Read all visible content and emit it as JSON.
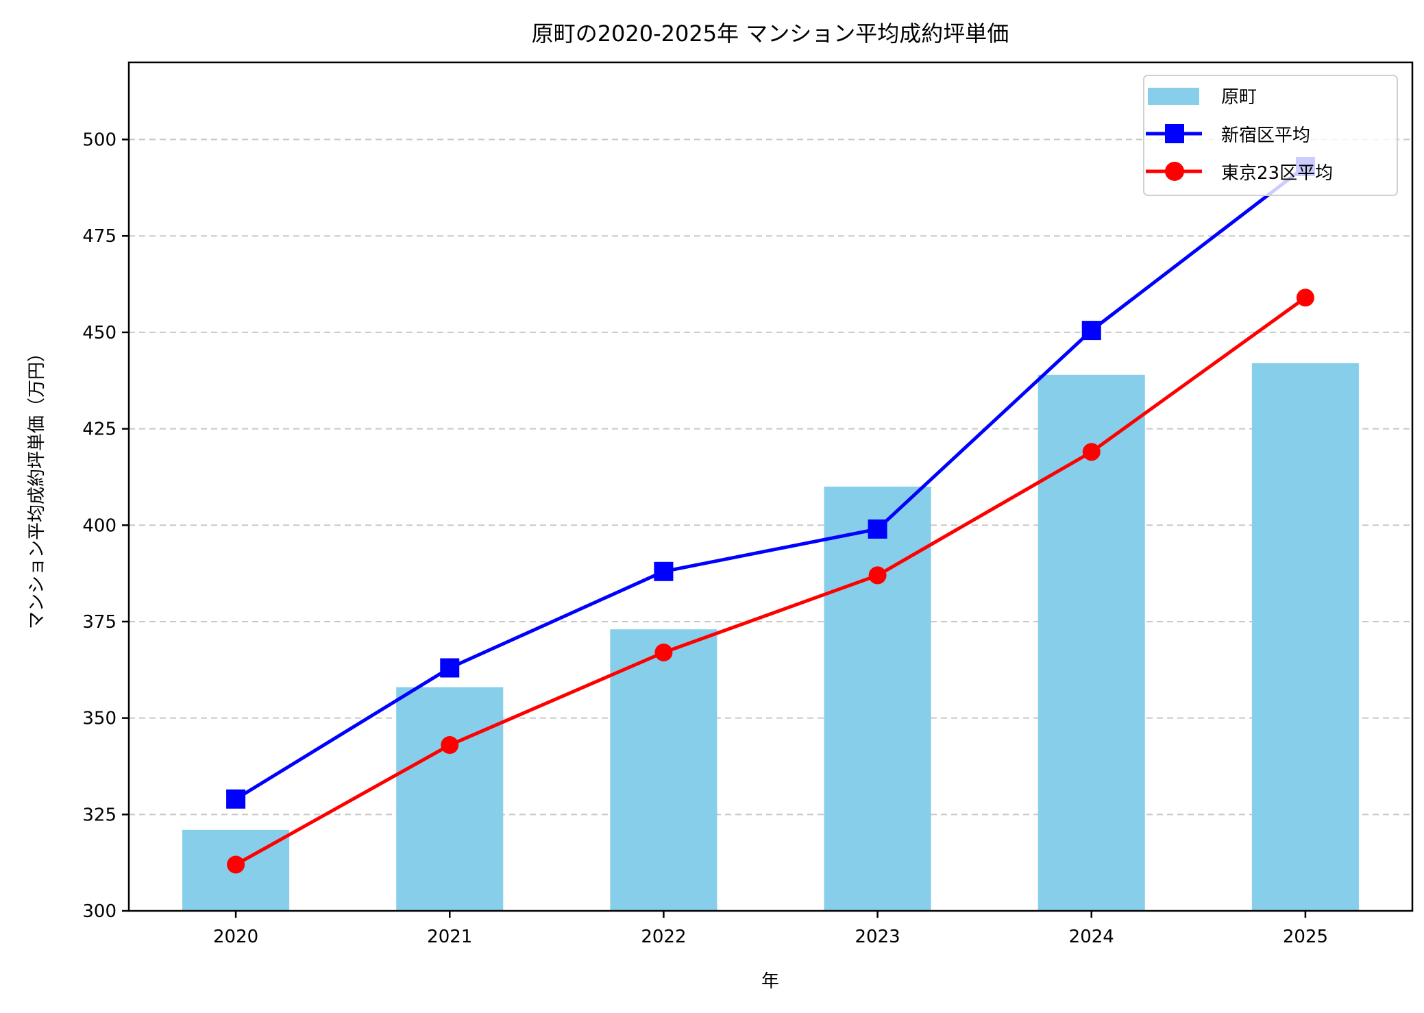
{
  "chart_data": {
    "type": "bar+line",
    "title": "原町の2020-2025年 マンション平均成約坪単価",
    "xlabel": "年",
    "ylabel": "マンション平均成約坪単価（万円）",
    "categories": [
      "2020",
      "2021",
      "2022",
      "2023",
      "2024",
      "2025"
    ],
    "ylim": [
      300,
      520
    ],
    "yticks": [
      300,
      325,
      350,
      375,
      400,
      425,
      450,
      475,
      500
    ],
    "grid": "y-dashed",
    "legend_position": "top-right",
    "series": [
      {
        "name": "原町",
        "kind": "bar",
        "color": "#87CEEB",
        "values": [
          321,
          358,
          373,
          410,
          439,
          442
        ]
      },
      {
        "name": "新宿区平均",
        "kind": "line",
        "marker": "square",
        "color": "#0000FF",
        "values": [
          329,
          363,
          388,
          399,
          450.5,
          493
        ]
      },
      {
        "name": "東京23区平均",
        "kind": "line",
        "marker": "circle",
        "color": "#FF0000",
        "values": [
          312,
          343,
          367,
          387,
          419,
          459
        ]
      }
    ]
  }
}
